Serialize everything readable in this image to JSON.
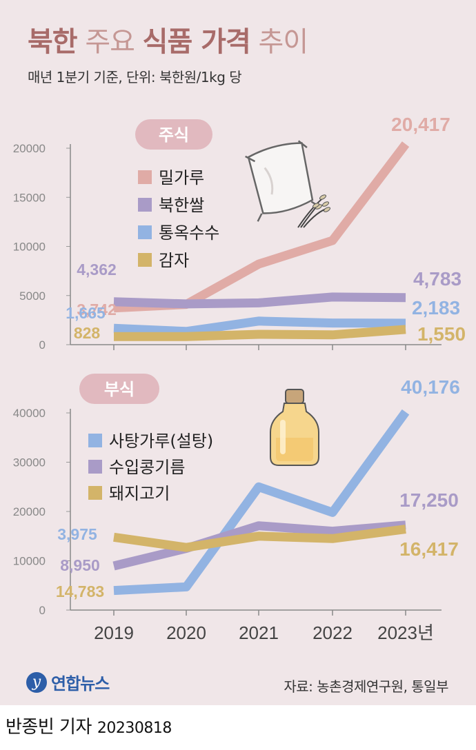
{
  "header": {
    "title_part1": "북한",
    "title_part2": "주요",
    "title_part3": "식품 가격",
    "title_part4": "추이",
    "subtitle": "매년 1분기 기준, 단위: 북한원/1kg 당"
  },
  "colors": {
    "wheat_flour": "#e0aba6",
    "rice": "#a99bc7",
    "corn": "#92b3e2",
    "potato": "#d3b469",
    "sugar": "#92b3e2",
    "soybean_oil": "#a99bc7",
    "pork": "#d3b469"
  },
  "icons": {
    "staple": "flour-sack-icon",
    "side": "oil-bottle-icon"
  },
  "chart_data": [
    {
      "type": "line",
      "badge": "주식",
      "x": [
        "2019",
        "2020",
        "2021",
        "2022",
        "2023"
      ],
      "ylim": [
        0,
        22000
      ],
      "yticks": [
        "0",
        "5000",
        "10000",
        "15000",
        "20000"
      ],
      "ytick_values": [
        0,
        5000,
        10000,
        15000,
        20000
      ],
      "legend_position": "top-left",
      "series": [
        {
          "name": "밀가루",
          "values": [
            3742,
            4100,
            8200,
            10600,
            20417
          ],
          "start_label": "3,742",
          "end_label": "20,417"
        },
        {
          "name": "북한쌀",
          "values": [
            4362,
            4150,
            4250,
            4850,
            4783
          ],
          "start_label": "4,362",
          "end_label": "4,783"
        },
        {
          "name": "통옥수수",
          "values": [
            1665,
            1350,
            2400,
            2200,
            2183
          ],
          "start_label": "1,665",
          "end_label": "2,183"
        },
        {
          "name": "감자",
          "values": [
            828,
            830,
            1050,
            1000,
            1550
          ],
          "start_label": "828",
          "end_label": "1,550"
        }
      ]
    },
    {
      "type": "line",
      "badge": "부식",
      "x": [
        "2019",
        "2020",
        "2021",
        "2022",
        "2023"
      ],
      "x_labels": [
        "2019",
        "2020",
        "2021",
        "2022",
        "2023년"
      ],
      "ylim": [
        0,
        44000
      ],
      "yticks": [
        "0",
        "10000",
        "20000",
        "30000",
        "40000"
      ],
      "ytick_values": [
        0,
        10000,
        20000,
        30000,
        40000
      ],
      "legend_position": "top-left",
      "series": [
        {
          "name": "사탕가루(설탕)",
          "values": [
            3975,
            4700,
            25000,
            19800,
            40176
          ],
          "start_label": "3,975",
          "end_label": "40,176"
        },
        {
          "name": "수입콩기름",
          "values": [
            8950,
            12500,
            17100,
            16000,
            17250
          ],
          "start_label": "8,950",
          "end_label": "17,250"
        },
        {
          "name": "돼지고기",
          "values": [
            14783,
            12700,
            15000,
            14500,
            16417
          ],
          "start_label": "14,783",
          "end_label": "16,417"
        }
      ]
    }
  ],
  "footer": {
    "logo_text": "연합뉴스",
    "source": "자료: 농촌경제연구원, 통일부",
    "reporter": "반종빈 기자",
    "date": "20230818"
  }
}
